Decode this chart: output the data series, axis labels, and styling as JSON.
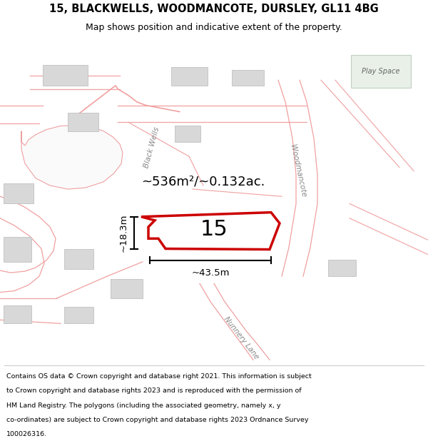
{
  "title": "15, BLACKWELLS, WOODMANCOTE, DURSLEY, GL11 4BG",
  "subtitle": "Map shows position and indicative extent of the property.",
  "footer": "Contains OS data © Crown copyright and database right 2021. This information is subject to Crown copyright and database rights 2023 and is reproduced with the permission of HM Land Registry. The polygons (including the associated geometry, namely x, y co-ordinates) are subject to Crown copyright and database rights 2023 Ordnance Survey 100026316.",
  "area_label": "~536m²/~0.132ac.",
  "number_label": "15",
  "dim_width": "~43.5m",
  "dim_height": "~18.3m",
  "bg_color": "#ffffff",
  "map_bg": "#ffffff",
  "road_color": "#f0a0a0",
  "road_fill": "#fce8e8",
  "building_color": "#d8d8d8",
  "building_edge": "#c0c0c0",
  "highlight_color": "#cc0000",
  "play_space_fill": "#e8f0e8",
  "play_space_edge": "#c0d0c0",
  "label_color": "#888888",
  "title_fontsize": 10.5,
  "subtitle_fontsize": 9,
  "footer_fontsize": 6.8
}
